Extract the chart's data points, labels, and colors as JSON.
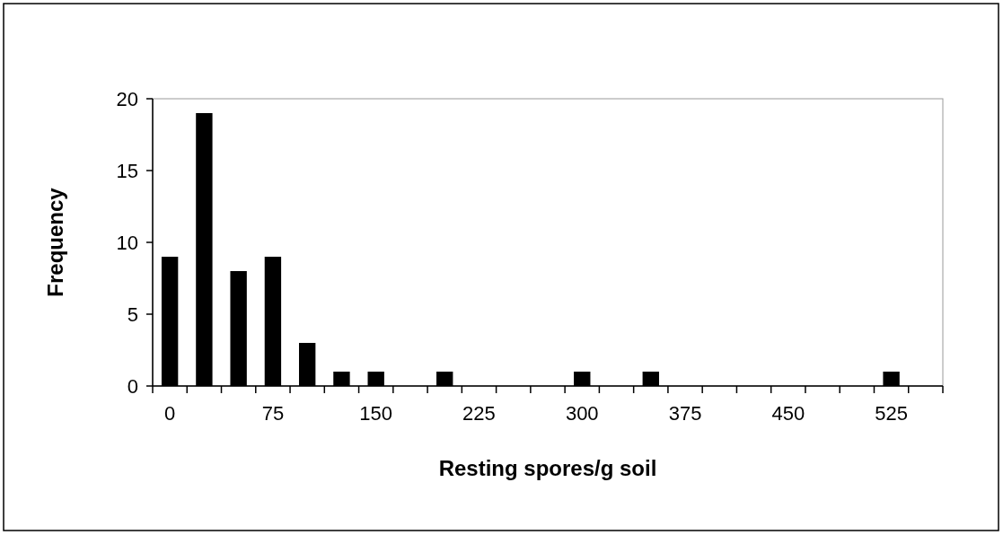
{
  "chart_data": {
    "type": "bar",
    "xlabel": "Resting spores/g soil",
    "ylabel": "Frequency",
    "categories": [
      "0",
      null,
      null,
      "75",
      null,
      null,
      "150",
      null,
      null,
      "225",
      null,
      null,
      "300",
      null,
      null,
      "375",
      null,
      null,
      "450",
      null,
      null,
      "525",
      null
    ],
    "values": [
      9,
      19,
      8,
      9,
      3,
      1,
      1,
      0,
      1,
      0,
      0,
      0,
      1,
      0,
      1,
      0,
      0,
      0,
      0,
      0,
      0,
      1,
      0
    ],
    "color": "#000000",
    "ylim": [
      0,
      20
    ],
    "yticks": [
      0,
      5,
      10,
      15,
      20
    ],
    "grid": false
  }
}
